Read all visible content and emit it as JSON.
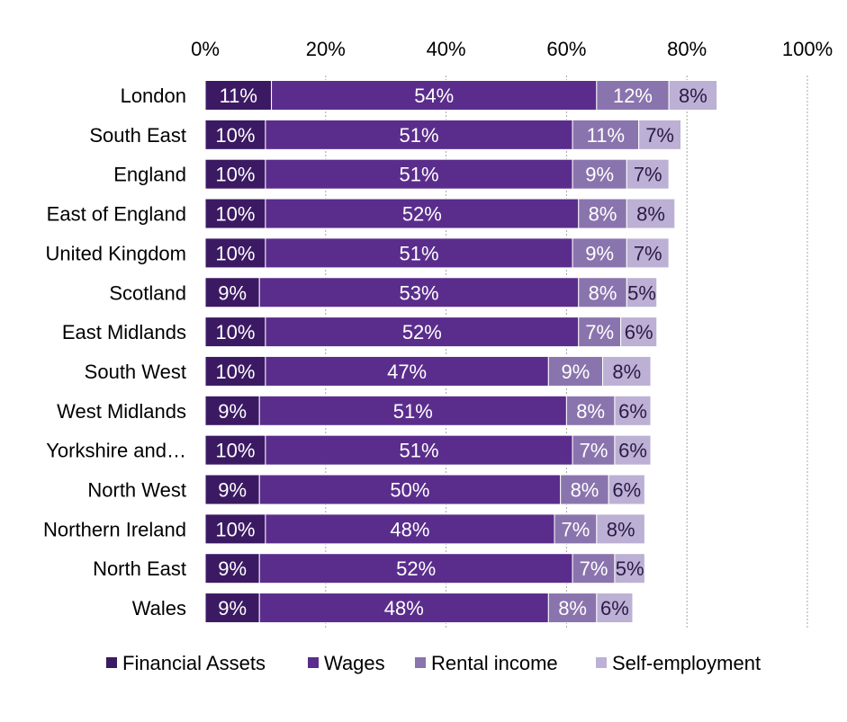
{
  "chart_data": {
    "type": "bar",
    "orientation": "horizontal",
    "stacked": true,
    "categories": [
      "London",
      "South East",
      "England",
      "East of England",
      "United Kingdom",
      "Scotland",
      "East Midlands",
      "South West",
      "West Midlands",
      "Yorkshire and…",
      "North West",
      "Northern Ireland",
      "North East",
      "Wales"
    ],
    "series": [
      {
        "name": "Financial Assets",
        "color": "#3b1a63",
        "label_color": "#ffffff",
        "values": [
          11,
          10,
          10,
          10,
          10,
          9,
          10,
          10,
          9,
          10,
          9,
          10,
          9,
          9
        ]
      },
      {
        "name": "Wages",
        "color": "#5a2d8c",
        "label_color": "#ffffff",
        "values": [
          54,
          51,
          51,
          52,
          51,
          53,
          52,
          47,
          51,
          51,
          50,
          48,
          52,
          48
        ]
      },
      {
        "name": "Rental income",
        "color": "#8a74ad",
        "label_color": "#ffffff",
        "values": [
          12,
          11,
          9,
          8,
          9,
          8,
          7,
          9,
          8,
          7,
          8,
          7,
          7,
          8
        ]
      },
      {
        "name": "Self-employment",
        "color": "#bcb0d4",
        "label_color": "#2c1a46",
        "values": [
          8,
          7,
          7,
          8,
          7,
          5,
          6,
          8,
          6,
          6,
          6,
          8,
          5,
          6
        ]
      }
    ],
    "data_labels": [
      [
        "11%",
        "54%",
        "12%",
        "8%"
      ],
      [
        "10%",
        "51%",
        "11%",
        "7%"
      ],
      [
        "10%",
        "51%",
        "9%",
        "7%"
      ],
      [
        "10%",
        "52%",
        "8%",
        "8%"
      ],
      [
        "10%",
        "51%",
        "9%",
        "7%"
      ],
      [
        "9%",
        "53%",
        "8%",
        "5%"
      ],
      [
        "10%",
        "52%",
        "7%",
        "6%"
      ],
      [
        "10%",
        "47%",
        "9%",
        "8%"
      ],
      [
        "9%",
        "51%",
        "8%",
        "6%"
      ],
      [
        "10%",
        "51%",
        "7%",
        "6%"
      ],
      [
        "9%",
        "50%",
        "8%",
        "6%"
      ],
      [
        "10%",
        "48%",
        "7%",
        "8%"
      ],
      [
        "9%",
        "52%",
        "7%",
        "5%"
      ],
      [
        "9%",
        "48%",
        "8%",
        "6%"
      ]
    ],
    "x_ticks": [
      "0%",
      "20%",
      "40%",
      "60%",
      "80%",
      "100%"
    ],
    "xlim": [
      0,
      100
    ],
    "x_axis_position": "top",
    "grid": "vertical dashed",
    "legend_position": "bottom"
  }
}
